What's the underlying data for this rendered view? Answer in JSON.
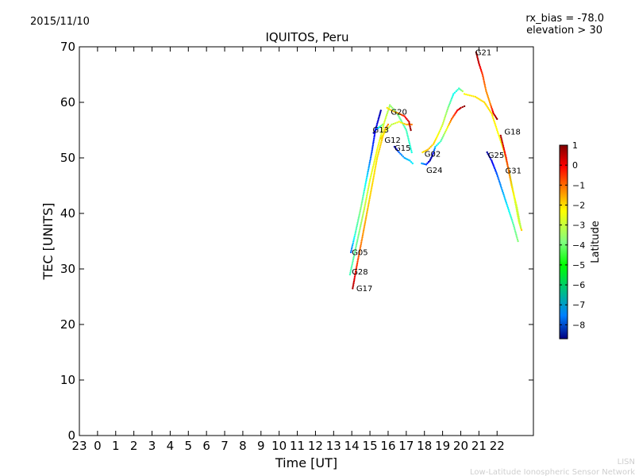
{
  "header": {
    "date": "2015/11/10",
    "rx_bias": "rx_bias = -78.0",
    "elevation": "elevation > 30"
  },
  "footer": {
    "org_short": "LISN",
    "org_full": "Low-Latitude Ionospheric Sensor Network"
  },
  "chart_data": {
    "type": "scatter",
    "title": "IQUITOS, Peru",
    "xlabel": "Time [UT]",
    "ylabel": "TEC [UNITS]",
    "xlim": [
      -1,
      24
    ],
    "ylim": [
      0,
      70
    ],
    "x_ticks": [
      {
        "v": -1,
        "label": "23"
      },
      {
        "v": 0,
        "label": "0"
      },
      {
        "v": 1,
        "label": "1"
      },
      {
        "v": 2,
        "label": "2"
      },
      {
        "v": 3,
        "label": "3"
      },
      {
        "v": 4,
        "label": "4"
      },
      {
        "v": 5,
        "label": "5"
      },
      {
        "v": 6,
        "label": "6"
      },
      {
        "v": 7,
        "label": "7"
      },
      {
        "v": 8,
        "label": "8"
      },
      {
        "v": 9,
        "label": "9"
      },
      {
        "v": 10,
        "label": "10"
      },
      {
        "v": 11,
        "label": "11"
      },
      {
        "v": 12,
        "label": "12"
      },
      {
        "v": 13,
        "label": "13"
      },
      {
        "v": 14,
        "label": "14"
      },
      {
        "v": 15,
        "label": "15"
      },
      {
        "v": 16,
        "label": "16"
      },
      {
        "v": 17,
        "label": "17"
      },
      {
        "v": 18,
        "label": "18"
      },
      {
        "v": 19,
        "label": "19"
      },
      {
        "v": 20,
        "label": "20"
      },
      {
        "v": 21,
        "label": "21"
      },
      {
        "v": 22,
        "label": "22"
      }
    ],
    "y_ticks": [
      0,
      10,
      20,
      30,
      40,
      50,
      60,
      70
    ],
    "colorbar": {
      "label": "Latitude",
      "range": [
        -8.7,
        1.0
      ],
      "ticks": [
        1,
        0,
        -1,
        -2,
        -3,
        -4,
        -5,
        -6,
        -7,
        -8
      ]
    },
    "series": [
      {
        "name": "G05",
        "label_at": [
          14.0,
          32.5
        ],
        "points": [
          [
            13.95,
            33.0,
            -6.5
          ],
          [
            14.2,
            36.5,
            -4.5
          ],
          [
            14.5,
            41.0,
            -3.8
          ],
          [
            14.8,
            46.0,
            -5.2
          ],
          [
            15.1,
            51.0,
            -6.8
          ],
          [
            15.3,
            55.0,
            -7.6
          ],
          [
            15.6,
            58.5,
            -8.3
          ]
        ]
      },
      {
        "name": "G28",
        "label_at": [
          14.0,
          29.0
        ],
        "points": [
          [
            13.9,
            29.0,
            -4.4
          ],
          [
            14.3,
            35.0,
            -4.0
          ],
          [
            14.7,
            41.0,
            -3.2
          ],
          [
            15.0,
            46.0,
            -2.9
          ],
          [
            15.4,
            51.5,
            -2.7
          ],
          [
            15.8,
            56.5,
            -3.0
          ],
          [
            16.1,
            59.5,
            -3.6
          ],
          [
            16.5,
            58.0,
            -3.9
          ],
          [
            17.0,
            55.0,
            -4.4
          ],
          [
            17.3,
            51.0,
            -4.8
          ]
        ]
      },
      {
        "name": "G17",
        "label_at": [
          14.25,
          26.0
        ],
        "points": [
          [
            14.05,
            26.5,
            0.6
          ],
          [
            14.3,
            31.0,
            -0.8
          ],
          [
            14.6,
            36.0,
            -1.6
          ],
          [
            15.0,
            43.0,
            -2.2
          ],
          [
            15.4,
            50.0,
            -2.4
          ],
          [
            15.8,
            55.0,
            -2.0
          ],
          [
            16.0,
            56.0,
            -1.5
          ]
        ]
      },
      {
        "name": "G13",
        "label_at": [
          15.15,
          54.6
        ],
        "points": [
          [
            15.2,
            54.5,
            -8.4
          ],
          [
            15.3,
            55.0,
            -7.6
          ],
          [
            15.5,
            55.5,
            -5.0
          ],
          [
            15.7,
            56.0,
            -3.6
          ]
        ]
      },
      {
        "name": "G12",
        "label_at": [
          15.8,
          52.7
        ],
        "points": [
          [
            15.6,
            53.5,
            -2.2
          ],
          [
            15.9,
            55.0,
            -2.8
          ],
          [
            16.2,
            56.0,
            -3.3
          ],
          [
            16.6,
            56.5,
            -2.8
          ],
          [
            17.0,
            56.0,
            -2.0
          ],
          [
            17.3,
            56.0,
            -1.4
          ]
        ]
      },
      {
        "name": "G15",
        "label_at": [
          16.35,
          51.3
        ],
        "points": [
          [
            16.35,
            52.0,
            -8.3
          ],
          [
            16.6,
            51.0,
            -6.5
          ],
          [
            16.9,
            50.0,
            -5.9
          ],
          [
            17.2,
            49.5,
            -5.5
          ],
          [
            17.35,
            49.0,
            -5.2
          ]
        ]
      },
      {
        "name": "G20",
        "label_at": [
          16.15,
          57.8
        ],
        "points": [
          [
            15.95,
            59.0,
            -2.4
          ],
          [
            16.2,
            58.5,
            -2.1
          ],
          [
            16.6,
            58.0,
            -1.6
          ],
          [
            16.9,
            57.5,
            -0.3
          ],
          [
            17.15,
            56.5,
            0.3
          ],
          [
            17.25,
            55.0,
            0.8
          ]
        ]
      },
      {
        "name": "G02",
        "label_at": [
          18.0,
          50.2
        ],
        "points": [
          [
            17.9,
            51.0,
            -2.4
          ],
          [
            18.2,
            51.5,
            -2.0
          ],
          [
            18.5,
            52.5,
            -2.2
          ],
          [
            18.8,
            54.5,
            -2.8
          ],
          [
            19.0,
            56.0,
            -3.1
          ],
          [
            19.3,
            59.0,
            -3.8
          ],
          [
            19.6,
            61.5,
            -5.0
          ],
          [
            19.9,
            62.5,
            -4.6
          ],
          [
            20.1,
            62.0,
            -3.4
          ]
        ]
      },
      {
        "name": "G24",
        "label_at": [
          18.1,
          47.3
        ],
        "points": [
          [
            17.85,
            49.0,
            -5.9
          ],
          [
            18.1,
            48.8,
            -6.8
          ],
          [
            18.3,
            49.5,
            -8.4
          ],
          [
            18.45,
            50.5,
            -8.0
          ],
          [
            18.6,
            52.0,
            -5.5
          ],
          [
            18.9,
            53.0,
            -4.4
          ],
          [
            19.2,
            55.0,
            -3.0
          ],
          [
            19.5,
            57.0,
            -1.2
          ],
          [
            19.8,
            58.5,
            -0.2
          ],
          [
            20.0,
            59.0,
            0.5
          ],
          [
            20.2,
            59.3,
            0.9
          ]
        ]
      },
      {
        "name": "G21",
        "label_at": [
          20.8,
          68.5
        ],
        "points": [
          [
            20.85,
            69.0,
            0.7
          ],
          [
            21.0,
            67.0,
            0.3
          ],
          [
            21.2,
            65.0,
            -0.8
          ],
          [
            21.4,
            62.0,
            -1.5
          ],
          [
            21.6,
            60.0,
            -1.7
          ],
          [
            21.8,
            58.0,
            0.2
          ],
          [
            22.0,
            57.0,
            0.8
          ]
        ]
      },
      {
        "name": "G18",
        "label_at": [
          22.4,
          54.2
        ],
        "points": [
          [
            20.2,
            61.5,
            -2.6
          ],
          [
            20.8,
            61.0,
            -2.4
          ],
          [
            21.3,
            60.0,
            -2.3
          ],
          [
            21.7,
            58.0,
            -2.4
          ],
          [
            22.0,
            55.0,
            -2.6
          ],
          [
            22.4,
            51.0,
            -2.9
          ],
          [
            22.7,
            47.0,
            -3.5
          ],
          [
            23.0,
            42.0,
            -3.2
          ],
          [
            23.2,
            38.5,
            -2.8
          ],
          [
            23.35,
            37.0,
            -2.2
          ]
        ]
      },
      {
        "name": "G25",
        "label_at": [
          21.5,
          50.0
        ],
        "points": [
          [
            21.45,
            51.0,
            -8.4
          ],
          [
            21.7,
            49.5,
            -7.8
          ],
          [
            22.0,
            47.0,
            -6.6
          ],
          [
            22.3,
            44.0,
            -5.9
          ],
          [
            22.6,
            41.0,
            -5.2
          ],
          [
            22.9,
            38.0,
            -4.2
          ],
          [
            23.15,
            35.0,
            -3.8
          ]
        ]
      },
      {
        "name": "G31",
        "label_at": [
          22.45,
          47.2
        ],
        "points": [
          [
            22.2,
            54.0,
            0.6
          ],
          [
            22.5,
            50.0,
            -0.5
          ],
          [
            22.8,
            45.0,
            -2.2
          ],
          [
            23.1,
            41.0,
            -3.1
          ],
          [
            23.3,
            37.5,
            -3.4
          ]
        ]
      }
    ]
  }
}
